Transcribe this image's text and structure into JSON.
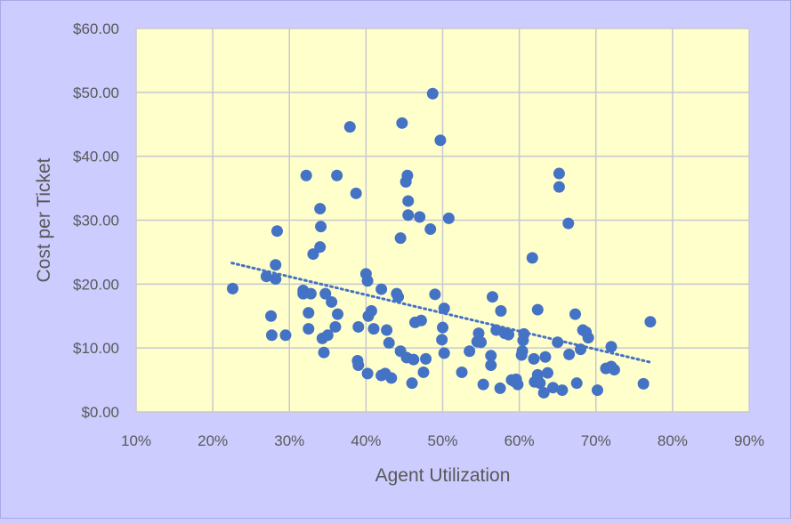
{
  "colors": {
    "background": "#ccccff",
    "plot_area": "#ffffcc",
    "gridline": "#c8c8d0",
    "marker": "#4472c4",
    "trendline": "#4472c4",
    "text": "#595959"
  },
  "chart_data": {
    "type": "scatter",
    "title": "",
    "xlabel": "Agent Utilization",
    "ylabel": "Cost per Ticket",
    "xlim": [
      0.1,
      0.9
    ],
    "ylim": [
      0,
      60
    ],
    "x_ticks": [
      0.1,
      0.2,
      0.3,
      0.4,
      0.5,
      0.6,
      0.7,
      0.8,
      0.9
    ],
    "x_tick_labels": [
      "10%",
      "20%",
      "30%",
      "40%",
      "50%",
      "60%",
      "70%",
      "80%",
      "90%"
    ],
    "y_ticks": [
      0,
      10,
      20,
      30,
      40,
      50,
      60
    ],
    "y_tick_labels": [
      "$0.00",
      "$10.00",
      "$20.00",
      "$30.00",
      "$40.00",
      "$50.00",
      "$60.00"
    ],
    "grid": true,
    "legend": "none",
    "trendline": {
      "style": "dotted",
      "x": [
        0.225,
        0.77
      ],
      "y": [
        23.3,
        7.8
      ]
    },
    "points": [
      [
        0.226,
        19.3
      ],
      [
        0.27,
        21.2
      ],
      [
        0.276,
        15.0
      ],
      [
        0.277,
        12.0
      ],
      [
        0.282,
        23.0
      ],
      [
        0.284,
        28.3
      ],
      [
        0.282,
        20.8
      ],
      [
        0.295,
        12.0
      ],
      [
        0.318,
        19.0
      ],
      [
        0.322,
        37.0
      ],
      [
        0.318,
        18.5
      ],
      [
        0.325,
        13.0
      ],
      [
        0.325,
        15.5
      ],
      [
        0.328,
        18.5
      ],
      [
        0.331,
        24.7
      ],
      [
        0.34,
        31.8
      ],
      [
        0.341,
        29.0
      ],
      [
        0.34,
        25.8
      ],
      [
        0.345,
        9.3
      ],
      [
        0.343,
        11.5
      ],
      [
        0.347,
        18.5
      ],
      [
        0.35,
        12.0
      ],
      [
        0.355,
        17.2
      ],
      [
        0.36,
        13.3
      ],
      [
        0.362,
        37.0
      ],
      [
        0.363,
        15.3
      ],
      [
        0.379,
        44.6
      ],
      [
        0.387,
        34.2
      ],
      [
        0.389,
        8.0
      ],
      [
        0.39,
        13.3
      ],
      [
        0.39,
        7.3
      ],
      [
        0.4,
        21.6
      ],
      [
        0.403,
        15.0
      ],
      [
        0.402,
        20.5
      ],
      [
        0.402,
        6.0
      ],
      [
        0.407,
        15.8
      ],
      [
        0.41,
        13.0
      ],
      [
        0.42,
        5.7
      ],
      [
        0.42,
        19.2
      ],
      [
        0.425,
        6.0
      ],
      [
        0.427,
        12.8
      ],
      [
        0.43,
        10.8
      ],
      [
        0.433,
        5.3
      ],
      [
        0.44,
        18.5
      ],
      [
        0.442,
        18.0
      ],
      [
        0.445,
        27.2
      ],
      [
        0.445,
        9.5
      ],
      [
        0.447,
        45.2
      ],
      [
        0.452,
        36.0
      ],
      [
        0.454,
        37.0
      ],
      [
        0.455,
        30.8
      ],
      [
        0.455,
        33.0
      ],
      [
        0.453,
        8.5
      ],
      [
        0.46,
        4.5
      ],
      [
        0.462,
        8.2
      ],
      [
        0.464,
        14.0
      ],
      [
        0.47,
        30.5
      ],
      [
        0.472,
        14.3
      ],
      [
        0.475,
        6.2
      ],
      [
        0.478,
        8.3
      ],
      [
        0.484,
        28.6
      ],
      [
        0.487,
        49.8
      ],
      [
        0.49,
        18.4
      ],
      [
        0.497,
        42.5
      ],
      [
        0.499,
        11.3
      ],
      [
        0.5,
        13.2
      ],
      [
        0.502,
        9.2
      ],
      [
        0.502,
        16.2
      ],
      [
        0.508,
        30.3
      ],
      [
        0.525,
        6.2
      ],
      [
        0.535,
        9.5
      ],
      [
        0.547,
        12.3
      ],
      [
        0.545,
        11.0
      ],
      [
        0.55,
        10.9
      ],
      [
        0.553,
        4.3
      ],
      [
        0.563,
        8.8
      ],
      [
        0.563,
        7.3
      ],
      [
        0.565,
        18.0
      ],
      [
        0.57,
        12.8
      ],
      [
        0.575,
        3.7
      ],
      [
        0.576,
        15.8
      ],
      [
        0.581,
        12.3
      ],
      [
        0.586,
        12.1
      ],
      [
        0.59,
        5.0
      ],
      [
        0.593,
        4.8
      ],
      [
        0.596,
        5.1
      ],
      [
        0.598,
        4.3
      ],
      [
        0.603,
        8.9
      ],
      [
        0.604,
        9.5
      ],
      [
        0.605,
        11.2
      ],
      [
        0.606,
        12.2
      ],
      [
        0.617,
        24.1
      ],
      [
        0.619,
        8.3
      ],
      [
        0.62,
        4.7
      ],
      [
        0.624,
        16.0
      ],
      [
        0.624,
        5.8
      ],
      [
        0.627,
        4.5
      ],
      [
        0.632,
        3.0
      ],
      [
        0.634,
        8.6
      ],
      [
        0.637,
        6.1
      ],
      [
        0.644,
        3.8
      ],
      [
        0.65,
        10.9
      ],
      [
        0.652,
        37.3
      ],
      [
        0.652,
        35.2
      ],
      [
        0.656,
        3.4
      ],
      [
        0.664,
        29.5
      ],
      [
        0.665,
        9.0
      ],
      [
        0.673,
        15.3
      ],
      [
        0.675,
        4.5
      ],
      [
        0.68,
        9.8
      ],
      [
        0.683,
        12.8
      ],
      [
        0.687,
        12.5
      ],
      [
        0.69,
        11.6
      ],
      [
        0.702,
        3.4
      ],
      [
        0.713,
        6.8
      ],
      [
        0.72,
        10.2
      ],
      [
        0.72,
        7.1
      ],
      [
        0.724,
        6.6
      ],
      [
        0.762,
        4.4
      ],
      [
        0.771,
        14.1
      ]
    ]
  }
}
